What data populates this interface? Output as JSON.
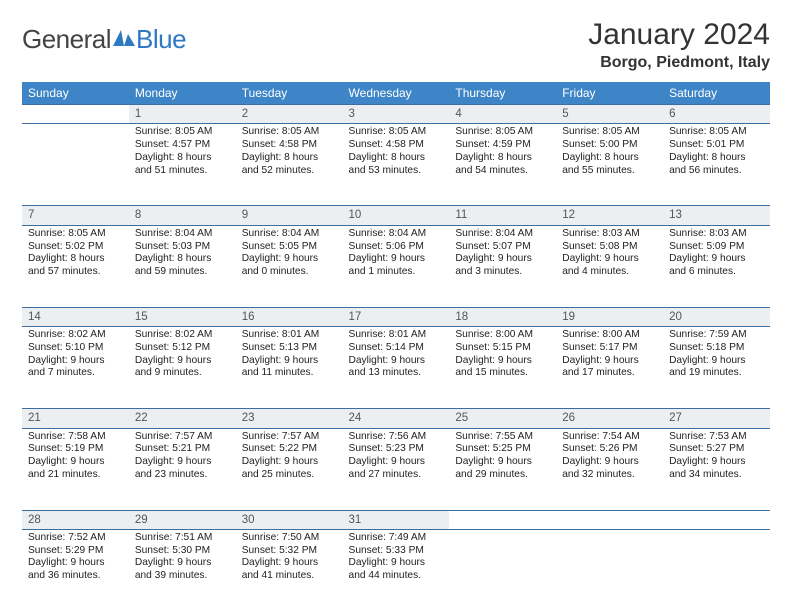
{
  "logo": {
    "word1": "General",
    "word2": "Blue"
  },
  "title": "January 2024",
  "location": "Borgo, Piedmont, Italy",
  "colors": {
    "header_bg": "#3d85c6",
    "header_text": "#ffffff",
    "rule": "#3a6ea5",
    "daynum_bg": "#eceff1",
    "text": "#222222",
    "logo_blue": "#2f78c4",
    "page_bg": "#ffffff"
  },
  "columns": [
    "Sunday",
    "Monday",
    "Tuesday",
    "Wednesday",
    "Thursday",
    "Friday",
    "Saturday"
  ],
  "weeks": [
    {
      "nums": [
        "",
        "1",
        "2",
        "3",
        "4",
        "5",
        "6"
      ],
      "cells": [
        null,
        {
          "sunrise": "8:05 AM",
          "sunset": "4:57 PM",
          "dl_h": 8,
          "dl_m": 51
        },
        {
          "sunrise": "8:05 AM",
          "sunset": "4:58 PM",
          "dl_h": 8,
          "dl_m": 52
        },
        {
          "sunrise": "8:05 AM",
          "sunset": "4:58 PM",
          "dl_h": 8,
          "dl_m": 53
        },
        {
          "sunrise": "8:05 AM",
          "sunset": "4:59 PM",
          "dl_h": 8,
          "dl_m": 54
        },
        {
          "sunrise": "8:05 AM",
          "sunset": "5:00 PM",
          "dl_h": 8,
          "dl_m": 55
        },
        {
          "sunrise": "8:05 AM",
          "sunset": "5:01 PM",
          "dl_h": 8,
          "dl_m": 56
        }
      ]
    },
    {
      "nums": [
        "7",
        "8",
        "9",
        "10",
        "11",
        "12",
        "13"
      ],
      "cells": [
        {
          "sunrise": "8:05 AM",
          "sunset": "5:02 PM",
          "dl_h": 8,
          "dl_m": 57
        },
        {
          "sunrise": "8:04 AM",
          "sunset": "5:03 PM",
          "dl_h": 8,
          "dl_m": 59
        },
        {
          "sunrise": "8:04 AM",
          "sunset": "5:05 PM",
          "dl_h": 9,
          "dl_m": 0
        },
        {
          "sunrise": "8:04 AM",
          "sunset": "5:06 PM",
          "dl_h": 9,
          "dl_m": 1
        },
        {
          "sunrise": "8:04 AM",
          "sunset": "5:07 PM",
          "dl_h": 9,
          "dl_m": 3
        },
        {
          "sunrise": "8:03 AM",
          "sunset": "5:08 PM",
          "dl_h": 9,
          "dl_m": 4
        },
        {
          "sunrise": "8:03 AM",
          "sunset": "5:09 PM",
          "dl_h": 9,
          "dl_m": 6
        }
      ]
    },
    {
      "nums": [
        "14",
        "15",
        "16",
        "17",
        "18",
        "19",
        "20"
      ],
      "cells": [
        {
          "sunrise": "8:02 AM",
          "sunset": "5:10 PM",
          "dl_h": 9,
          "dl_m": 7
        },
        {
          "sunrise": "8:02 AM",
          "sunset": "5:12 PM",
          "dl_h": 9,
          "dl_m": 9
        },
        {
          "sunrise": "8:01 AM",
          "sunset": "5:13 PM",
          "dl_h": 9,
          "dl_m": 11
        },
        {
          "sunrise": "8:01 AM",
          "sunset": "5:14 PM",
          "dl_h": 9,
          "dl_m": 13
        },
        {
          "sunrise": "8:00 AM",
          "sunset": "5:15 PM",
          "dl_h": 9,
          "dl_m": 15
        },
        {
          "sunrise": "8:00 AM",
          "sunset": "5:17 PM",
          "dl_h": 9,
          "dl_m": 17
        },
        {
          "sunrise": "7:59 AM",
          "sunset": "5:18 PM",
          "dl_h": 9,
          "dl_m": 19
        }
      ]
    },
    {
      "nums": [
        "21",
        "22",
        "23",
        "24",
        "25",
        "26",
        "27"
      ],
      "cells": [
        {
          "sunrise": "7:58 AM",
          "sunset": "5:19 PM",
          "dl_h": 9,
          "dl_m": 21
        },
        {
          "sunrise": "7:57 AM",
          "sunset": "5:21 PM",
          "dl_h": 9,
          "dl_m": 23
        },
        {
          "sunrise": "7:57 AM",
          "sunset": "5:22 PM",
          "dl_h": 9,
          "dl_m": 25
        },
        {
          "sunrise": "7:56 AM",
          "sunset": "5:23 PM",
          "dl_h": 9,
          "dl_m": 27
        },
        {
          "sunrise": "7:55 AM",
          "sunset": "5:25 PM",
          "dl_h": 9,
          "dl_m": 29
        },
        {
          "sunrise": "7:54 AM",
          "sunset": "5:26 PM",
          "dl_h": 9,
          "dl_m": 32
        },
        {
          "sunrise": "7:53 AM",
          "sunset": "5:27 PM",
          "dl_h": 9,
          "dl_m": 34
        }
      ]
    },
    {
      "nums": [
        "28",
        "29",
        "30",
        "31",
        "",
        "",
        ""
      ],
      "cells": [
        {
          "sunrise": "7:52 AM",
          "sunset": "5:29 PM",
          "dl_h": 9,
          "dl_m": 36
        },
        {
          "sunrise": "7:51 AM",
          "sunset": "5:30 PM",
          "dl_h": 9,
          "dl_m": 39
        },
        {
          "sunrise": "7:50 AM",
          "sunset": "5:32 PM",
          "dl_h": 9,
          "dl_m": 41
        },
        {
          "sunrise": "7:49 AM",
          "sunset": "5:33 PM",
          "dl_h": 9,
          "dl_m": 44
        },
        null,
        null,
        null
      ]
    }
  ]
}
